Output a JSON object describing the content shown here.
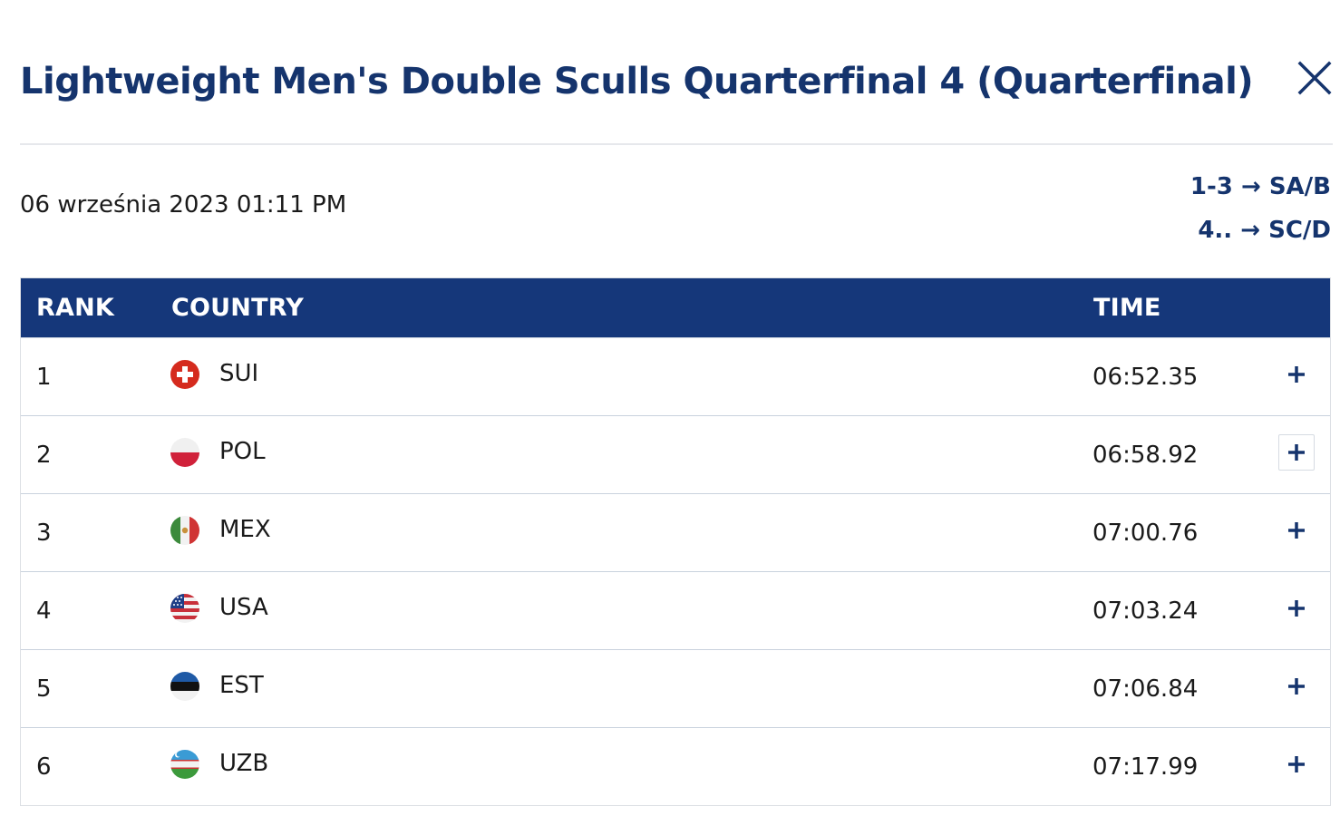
{
  "header": {
    "title": "Lightweight Men's Double Sculls Quarterfinal 4 (Quarterfinal)"
  },
  "meta": {
    "date": "06 września 2023 01:11 PM"
  },
  "progression": [
    {
      "from": "1-3",
      "to": "SA/B"
    },
    {
      "from": "4..",
      "to": "SC/D"
    }
  ],
  "table": {
    "columns": {
      "rank": "RANK",
      "country": "COUNTRY",
      "time": "TIME"
    },
    "rows": [
      {
        "rank": "1",
        "country": "SUI",
        "time": "06:52.35",
        "flag_icon": "switzerland-flag-icon"
      },
      {
        "rank": "2",
        "country": "POL",
        "time": "06:58.92",
        "flag_icon": "poland-flag-icon"
      },
      {
        "rank": "3",
        "country": "MEX",
        "time": "07:00.76",
        "flag_icon": "mexico-flag-icon"
      },
      {
        "rank": "4",
        "country": "USA",
        "time": "07:03.24",
        "flag_icon": "usa-flag-icon"
      },
      {
        "rank": "5",
        "country": "EST",
        "time": "07:06.84",
        "flag_icon": "estonia-flag-icon"
      },
      {
        "rank": "6",
        "country": "UZB",
        "time": "07:17.99",
        "flag_icon": "uzbekistan-flag-icon"
      }
    ]
  },
  "colors": {
    "brand_navy": "#15346d",
    "header_bg": "#15377a",
    "row_divider": "#c9d2dd"
  }
}
